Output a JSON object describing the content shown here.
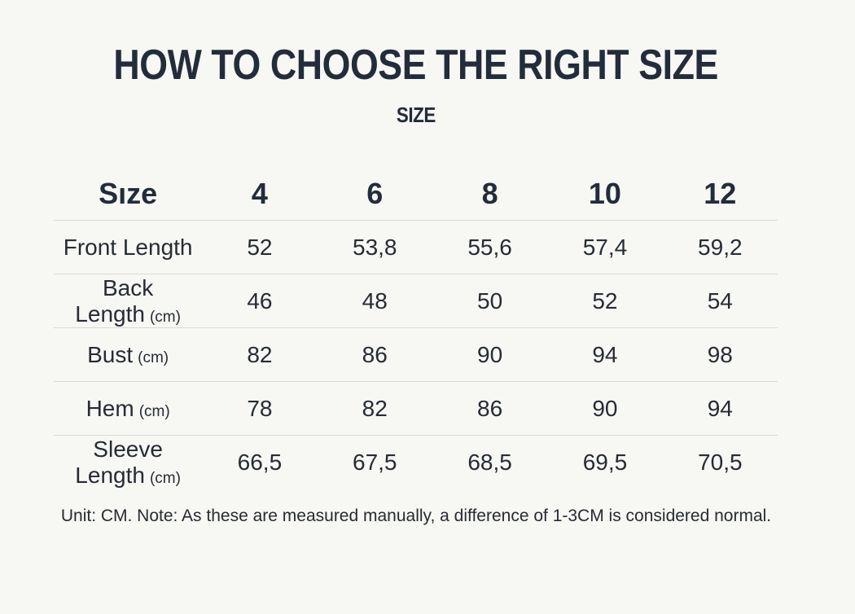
{
  "page": {
    "title": "HOW TO CHOOSE THE RIGHT SIZE",
    "subtitle": "SIZE",
    "note": "Unit: CM. Note: As these are measured manually, a difference of 1-3CM is considered normal."
  },
  "colors": {
    "background": "#f7f7f4",
    "heading_text": "#232c3b",
    "body_text": "#262b34",
    "divider": "#d9d9d9"
  },
  "chart_data": {
    "type": "table",
    "title": "HOW TO CHOOSE THE RIGHT SIZE",
    "subtitle": "SIZE",
    "columns": [
      "Sıze",
      "4",
      "6",
      "8",
      "10",
      "12"
    ],
    "rows": [
      {
        "label": "Front Length",
        "unit": "",
        "values": [
          "52",
          "53,8",
          "55,6",
          "57,4",
          "59,2"
        ]
      },
      {
        "label": "Back Length",
        "unit": "(cm)",
        "values": [
          "46",
          "48",
          "50",
          "52",
          "54"
        ]
      },
      {
        "label": "Bust",
        "unit": "(cm)",
        "values": [
          "82",
          "86",
          "90",
          "94",
          "98"
        ]
      },
      {
        "label": "Hem",
        "unit": "(cm)",
        "values": [
          "78",
          "82",
          "86",
          "90",
          "94"
        ]
      },
      {
        "label": "Sleeve Length",
        "unit": "(cm)",
        "values": [
          "66,5",
          "67,5",
          "68,5",
          "69,5",
          "70,5"
        ]
      }
    ],
    "note": "Unit: CM. Note: As these are measured manually, a difference of 1-3CM is considered normal.",
    "layout_hints": {
      "decimal_separator": "comma",
      "dividers": "below header row and between data rows 1-4 only; no divider below last row",
      "all_cells_centered": true
    }
  }
}
